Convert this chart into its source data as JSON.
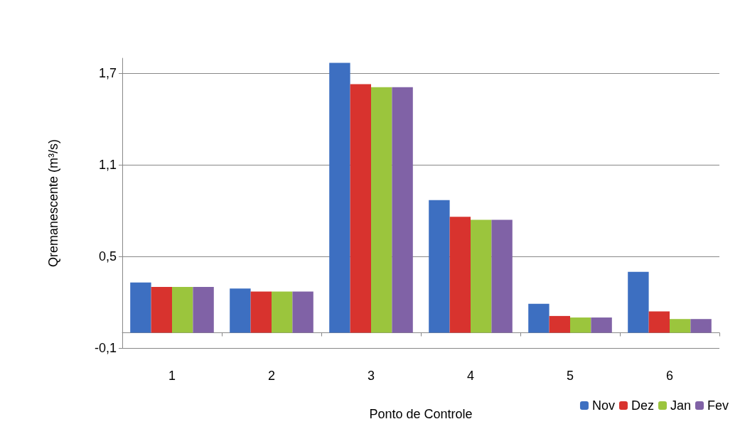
{
  "chart_data": {
    "type": "bar",
    "xlabel": "Ponto de Controle",
    "ylabel": "Qremanescente (m³/s)",
    "categories": [
      "1",
      "2",
      "3",
      "4",
      "5",
      "6"
    ],
    "series": [
      {
        "name": "Nov",
        "color": "#3d6fc1",
        "values": [
          0.33,
          0.29,
          1.77,
          0.87,
          0.19,
          0.4
        ]
      },
      {
        "name": "Dez",
        "color": "#d8332e",
        "values": [
          0.3,
          0.27,
          1.63,
          0.76,
          0.11,
          0.14
        ]
      },
      {
        "name": "Jan",
        "color": "#9bc53d",
        "values": [
          0.3,
          0.27,
          1.61,
          0.74,
          0.1,
          0.09
        ]
      },
      {
        "name": "Fev",
        "color": "#8062a6",
        "values": [
          0.3,
          0.27,
          1.61,
          0.74,
          0.1,
          0.09
        ]
      }
    ],
    "ylim": [
      -0.1,
      1.8
    ],
    "yticks": [
      {
        "value": -0.1,
        "label": "-0,1"
      },
      {
        "value": 0.5,
        "label": "0,5"
      },
      {
        "value": 1.1,
        "label": "1,1"
      },
      {
        "value": 1.7,
        "label": "1,7"
      }
    ],
    "grid": "y",
    "legend": "bottom right"
  }
}
